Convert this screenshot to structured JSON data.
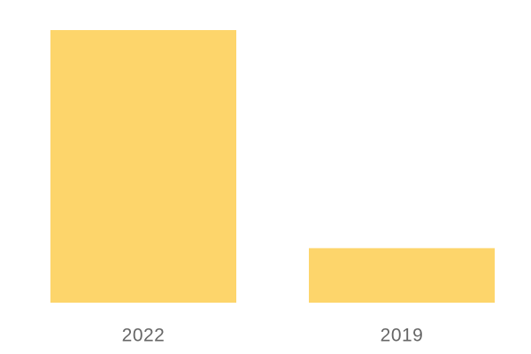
{
  "chart_data": {
    "type": "bar",
    "categories": [
      "2022",
      "2019"
    ],
    "values": [
      100,
      20
    ],
    "color": "#fdd56b"
  }
}
